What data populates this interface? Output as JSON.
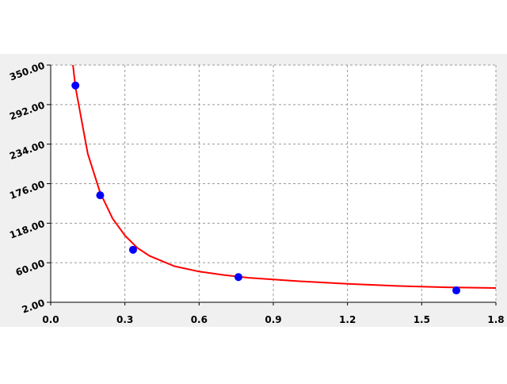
{
  "chart_data": {
    "type": "scatter",
    "points": {
      "color": "#0000ff",
      "x": [
        0.1,
        0.2,
        0.333,
        0.759,
        1.64
      ],
      "y": [
        320,
        159,
        79,
        39,
        19.4
      ]
    },
    "fit": {
      "color": "#ff0000",
      "x": [
        0.09,
        0.1,
        0.15,
        0.2,
        0.25,
        0.3,
        0.35,
        0.4,
        0.5,
        0.6,
        0.7,
        0.8,
        1.0,
        1.2,
        1.4,
        1.6,
        1.8
      ],
      "y": [
        350,
        318,
        220,
        163,
        125,
        100,
        82,
        70,
        55,
        47,
        42,
        38,
        33,
        29,
        26,
        24,
        23
      ]
    },
    "xlim": [
      0,
      1.8
    ],
    "xticks": [
      {
        "value": 0,
        "label": "0.0"
      },
      {
        "value": 0.3,
        "label": "0.3"
      },
      {
        "value": 0.6,
        "label": "0.6"
      },
      {
        "value": 0.9,
        "label": "0.9"
      },
      {
        "value": 1.2,
        "label": "1.2"
      },
      {
        "value": 1.5,
        "label": "1.5"
      },
      {
        "value": 1.8,
        "label": "1.8"
      }
    ],
    "ylim": [
      2,
      350
    ],
    "yticks": [
      {
        "value": 2,
        "label": "2.00"
      },
      {
        "value": 60,
        "label": "60.00"
      },
      {
        "value": 118,
        "label": "118.00"
      },
      {
        "value": 176,
        "label": "176.00"
      },
      {
        "value": 234,
        "label": "234.00"
      },
      {
        "value": 292,
        "label": "292.00"
      },
      {
        "value": 350,
        "label": "350.00"
      }
    ],
    "grid": true
  }
}
